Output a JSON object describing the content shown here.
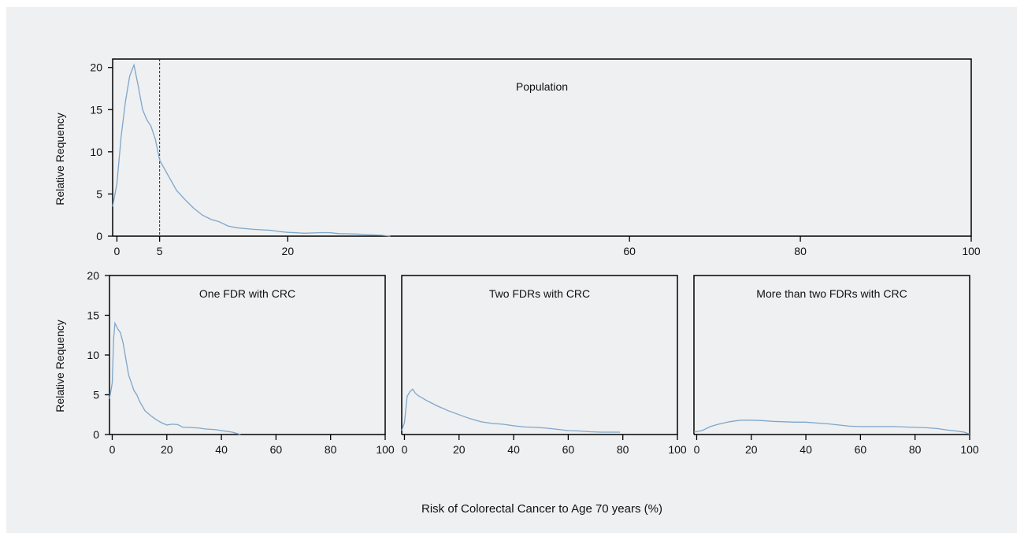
{
  "chart_data": {
    "type": "line",
    "xlabel": "Risk of Colorectal Cancer to Age 70 years (%)",
    "line_color": "#7fa6c9",
    "background": "#eef0f2",
    "panels": [
      {
        "id": "population",
        "title": "Population",
        "ylabel": "Relative Requency",
        "xlim": [
          -0.5,
          100
        ],
        "ylim": [
          0,
          21
        ],
        "xticks": [
          0,
          5,
          20,
          60,
          80,
          100
        ],
        "yticks": [
          0,
          5,
          10,
          15,
          20
        ],
        "reference_line_x": 5,
        "series": [
          {
            "x": [
              -0.5,
              0,
              0.5,
              1,
              1.5,
              2,
              2.5,
              3,
              3.5,
              4,
              4.5,
              5,
              6,
              7,
              8,
              9,
              10,
              11,
              12,
              13,
              14,
              15,
              16,
              17,
              18,
              19,
              20,
              21,
              22,
              23,
              24,
              25,
              26,
              27,
              28,
              29,
              30,
              31,
              32
            ],
            "y": [
              3.5,
              6.2,
              11.8,
              16.0,
              19.0,
              20.3,
              17.8,
              15.0,
              13.8,
              13.0,
              11.5,
              9.0,
              7.2,
              5.4,
              4.3,
              3.3,
              2.5,
              2.0,
              1.7,
              1.2,
              1.0,
              0.9,
              0.8,
              0.75,
              0.7,
              0.55,
              0.45,
              0.4,
              0.35,
              0.38,
              0.42,
              0.4,
              0.3,
              0.28,
              0.25,
              0.2,
              0.15,
              0.1,
              0
            ]
          }
        ]
      },
      {
        "id": "one-fdr",
        "title": "One FDR with CRC",
        "ylabel": "Relative Requency",
        "xlim": [
          -1,
          100
        ],
        "ylim": [
          0,
          20
        ],
        "xticks": [
          0,
          20,
          40,
          60,
          80,
          100
        ],
        "yticks": [
          0,
          5,
          10,
          15,
          20
        ],
        "series": [
          {
            "x": [
              -1,
              0,
              0.5,
              1,
              2,
              3,
              4,
              5,
              6,
              7,
              8,
              9,
              10,
              12,
              14,
              16,
              18,
              20,
              22,
              24,
              26,
              28,
              30,
              32,
              34,
              36,
              38,
              40,
              42,
              44,
              46,
              47
            ],
            "y": [
              4.5,
              6.5,
              12.0,
              14.0,
              13.3,
              12.8,
              11.5,
              9.5,
              7.5,
              6.5,
              5.5,
              5.0,
              4.2,
              3.0,
              2.4,
              1.9,
              1.5,
              1.2,
              1.3,
              1.25,
              0.9,
              0.9,
              0.85,
              0.8,
              0.7,
              0.65,
              0.6,
              0.5,
              0.4,
              0.3,
              0.1,
              0
            ]
          }
        ]
      },
      {
        "id": "two-fdrs",
        "title": "Two FDRs with CRC",
        "ylabel": "",
        "xlim": [
          -1,
          100
        ],
        "ylim": [
          0,
          20
        ],
        "xticks": [
          0,
          20,
          40,
          60,
          80,
          100
        ],
        "yticks": [],
        "series": [
          {
            "x": [
              -1,
              0,
              0.5,
              1,
              2,
              3,
              4,
              5,
              8,
              12,
              16,
              20,
              24,
              28,
              32,
              36,
              40,
              44,
              48,
              52,
              56,
              60,
              64,
              68,
              72,
              76,
              79
            ],
            "y": [
              0.5,
              1.5,
              3.2,
              4.8,
              5.4,
              5.7,
              5.2,
              4.9,
              4.3,
              3.6,
              3.0,
              2.5,
              2.0,
              1.6,
              1.4,
              1.3,
              1.1,
              0.95,
              0.9,
              0.8,
              0.65,
              0.5,
              0.45,
              0.35,
              0.3,
              0.3,
              0.3
            ]
          }
        ]
      },
      {
        "id": "more-than-two-fdrs",
        "title": "More than two FDRs with CRC",
        "ylabel": "",
        "xlim": [
          -1,
          100
        ],
        "ylim": [
          0,
          20
        ],
        "xticks": [
          0,
          20,
          40,
          60,
          80,
          100
        ],
        "yticks": [],
        "series": [
          {
            "x": [
              -1,
              2,
              5,
              8,
              12,
              16,
              20,
              24,
              28,
              32,
              36,
              40,
              44,
              48,
              52,
              56,
              60,
              64,
              68,
              72,
              76,
              80,
              84,
              88,
              92,
              95,
              98,
              100
            ],
            "y": [
              0.3,
              0.5,
              1.0,
              1.3,
              1.6,
              1.8,
              1.8,
              1.75,
              1.65,
              1.6,
              1.55,
              1.55,
              1.45,
              1.35,
              1.2,
              1.05,
              1.0,
              1.0,
              1.0,
              1.0,
              0.95,
              0.9,
              0.85,
              0.75,
              0.55,
              0.45,
              0.3,
              0.05
            ]
          }
        ]
      }
    ]
  }
}
